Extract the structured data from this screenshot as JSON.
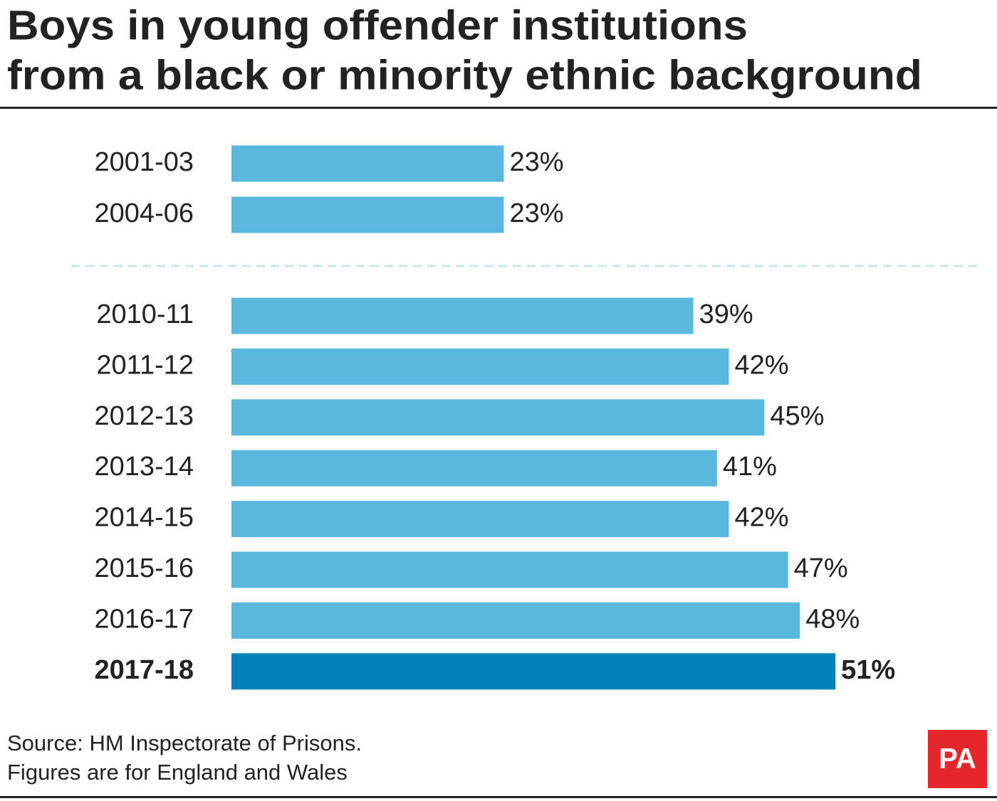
{
  "chart_data": {
    "type": "bar",
    "orientation": "horizontal",
    "title": [
      "Boys in young offender institutions",
      "from a black or minority ethnic background"
    ],
    "categories": [
      "2001-03",
      "2004-06",
      "2010-11",
      "2011-12",
      "2012-13",
      "2013-14",
      "2014-15",
      "2015-16",
      "2016-17",
      "2017-18"
    ],
    "values": [
      23,
      23,
      39,
      42,
      45,
      41,
      42,
      47,
      48,
      51
    ],
    "value_labels": [
      "23%",
      "23%",
      "39%",
      "42%",
      "45%",
      "41%",
      "42%",
      "47%",
      "48%",
      "51%"
    ],
    "colors": [
      "#5ab7de",
      "#5ab7de",
      "#5ab7de",
      "#5ab7de",
      "#5ab7de",
      "#5ab7de",
      "#5ab7de",
      "#5ab7de",
      "#5ab7de",
      "#0081bb"
    ],
    "source": [
      "Source: HM Inspectorate of Prisons.",
      "Figures are for England and Wales"
    ],
    "logo": "PA"
  }
}
